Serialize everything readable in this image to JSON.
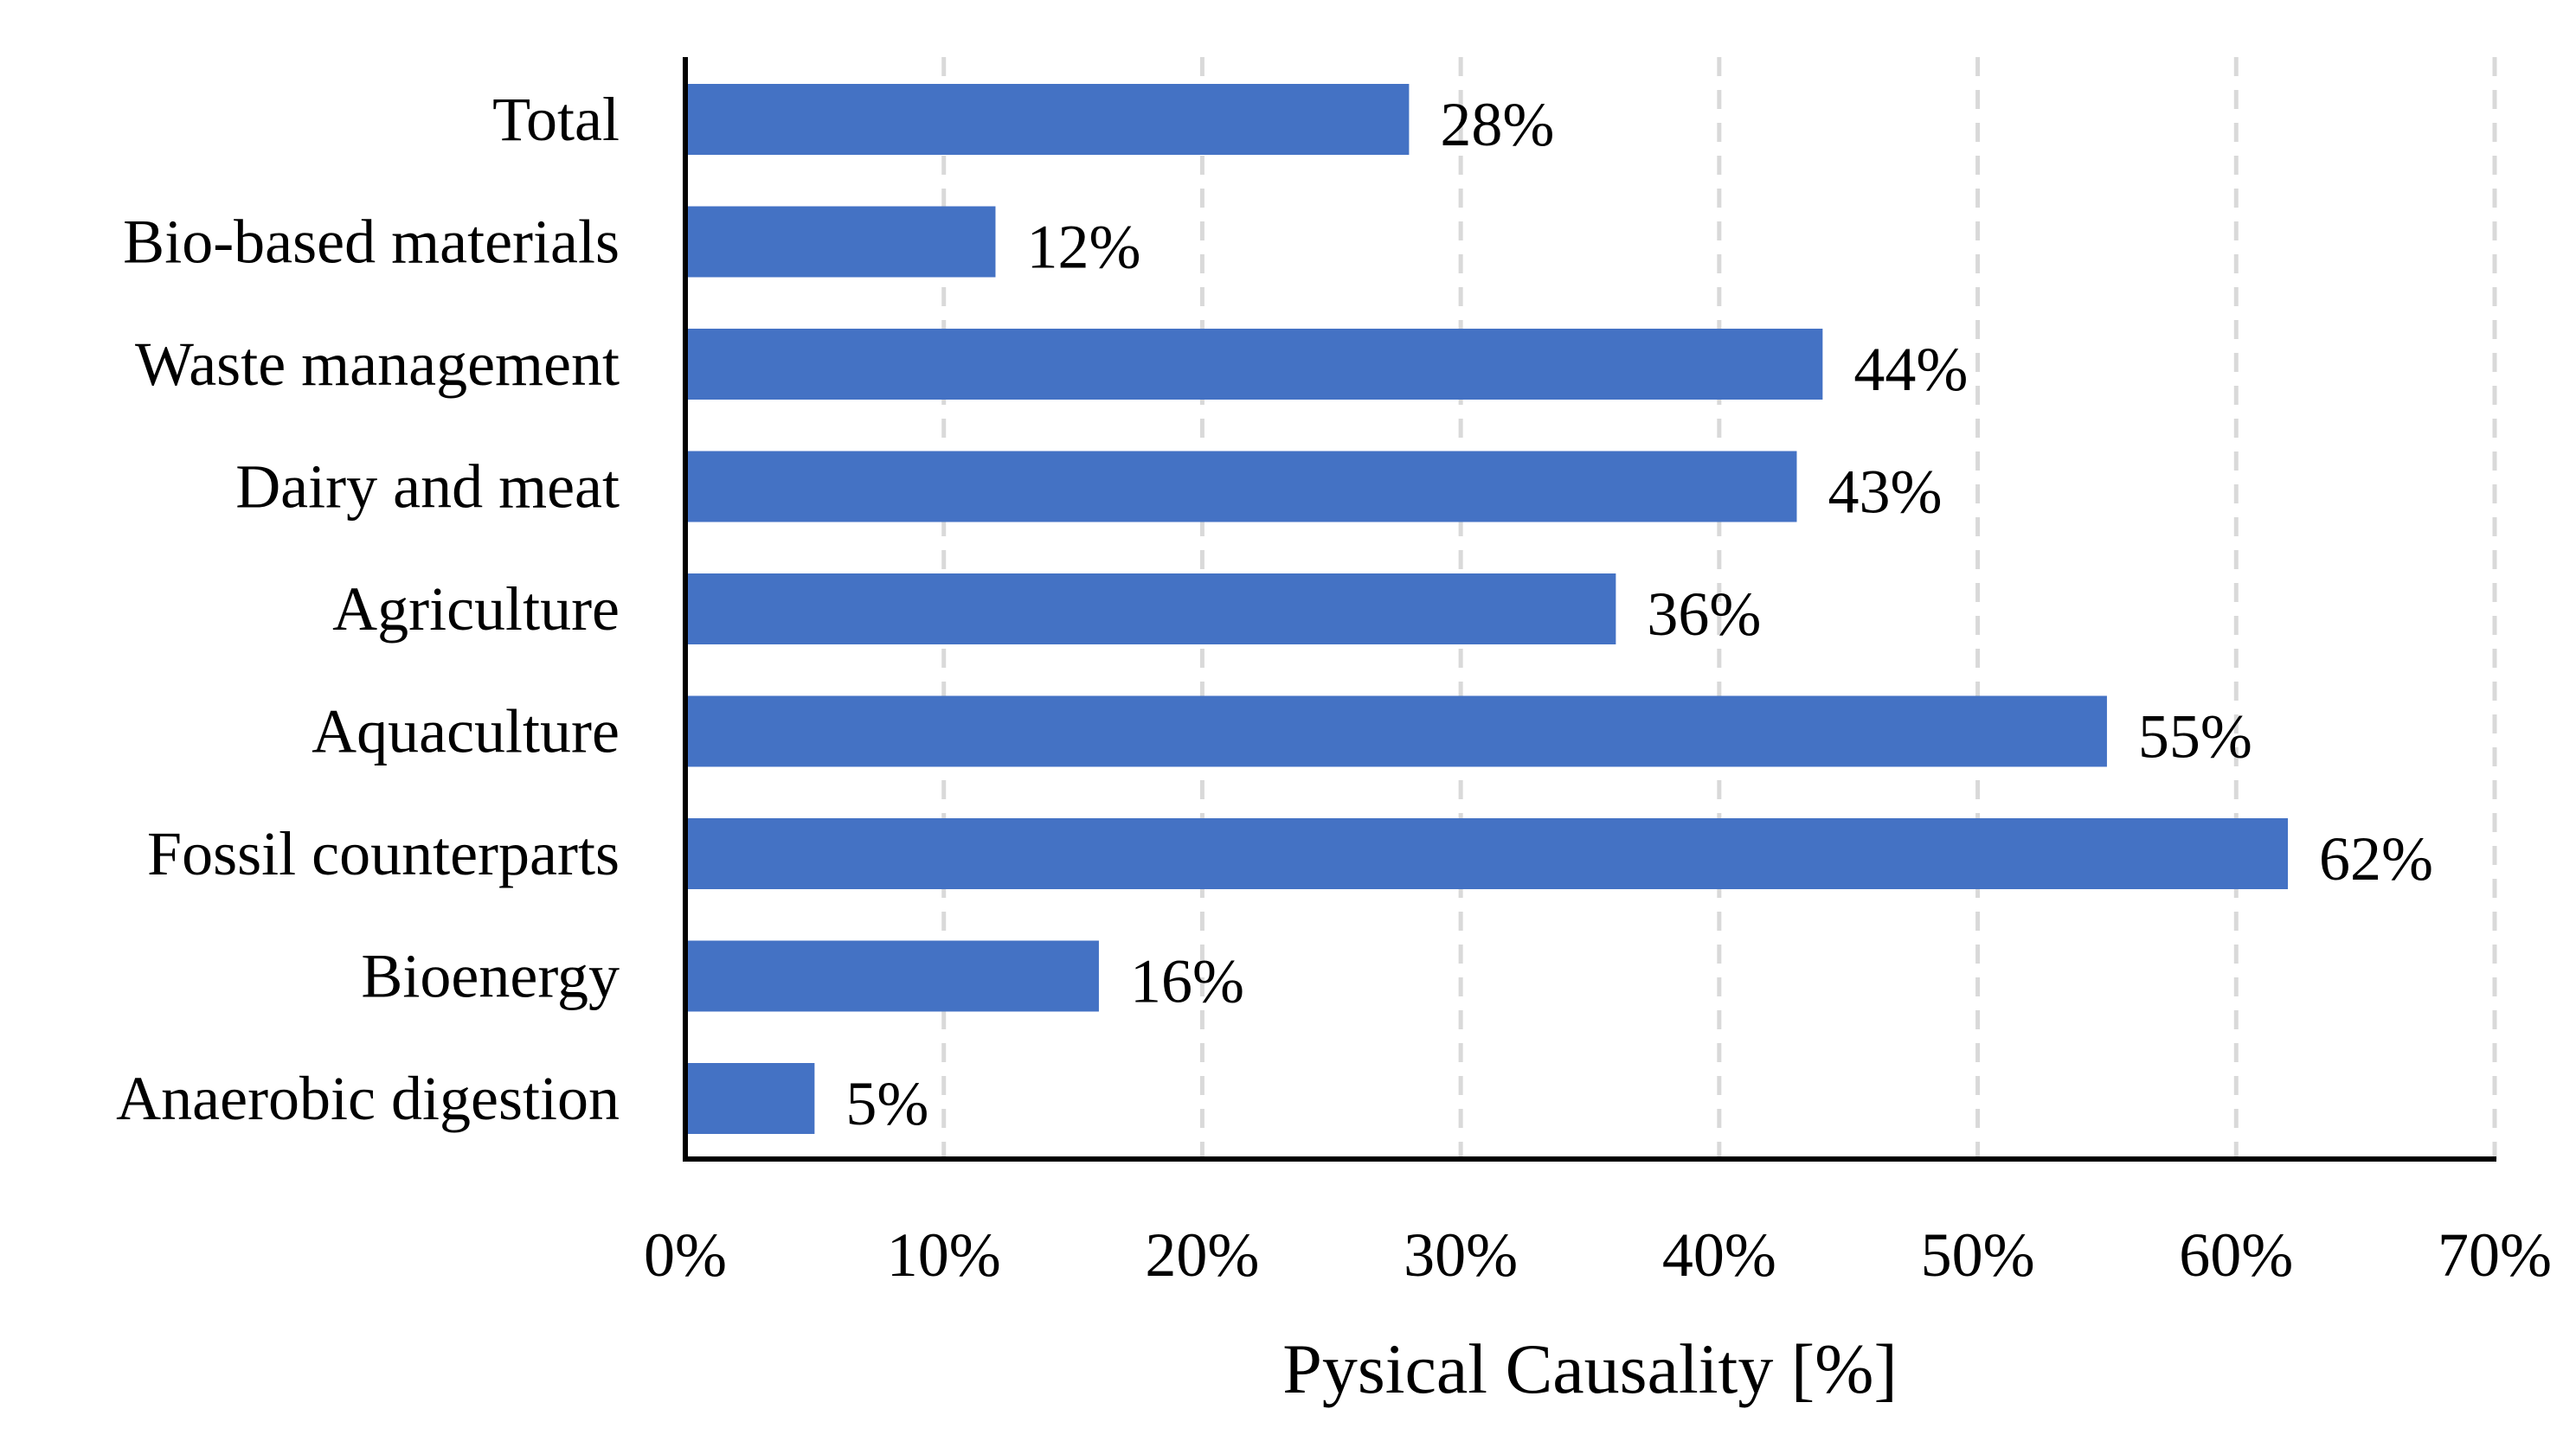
{
  "chart_data": {
    "type": "bar",
    "orientation": "horizontal",
    "categories": [
      "Total",
      "Bio-based materials",
      "Waste management",
      "Dairy and meat",
      "Agriculture",
      "Aquaculture",
      "Fossil counterparts",
      "Bioenergy",
      "Anaerobic digestion"
    ],
    "values": [
      28,
      12,
      44,
      43,
      36,
      55,
      62,
      16,
      5
    ],
    "data_labels": [
      "28%",
      "12%",
      "44%",
      "43%",
      "36%",
      "55%",
      "62%",
      "16%",
      "5%"
    ],
    "xlabel": "Pysical Causality [%]",
    "ylabel": "",
    "xlim": [
      0,
      70
    ],
    "x_ticks": [
      0,
      10,
      20,
      30,
      40,
      50,
      60,
      70
    ],
    "x_tick_labels": [
      "0%",
      "10%",
      "20%",
      "30%",
      "40%",
      "50%",
      "60%",
      "70%"
    ],
    "grid": "vertical dashed",
    "bar_color": "#4472C4",
    "grid_color": "#D9D9D9",
    "axis_color": "#000000"
  }
}
